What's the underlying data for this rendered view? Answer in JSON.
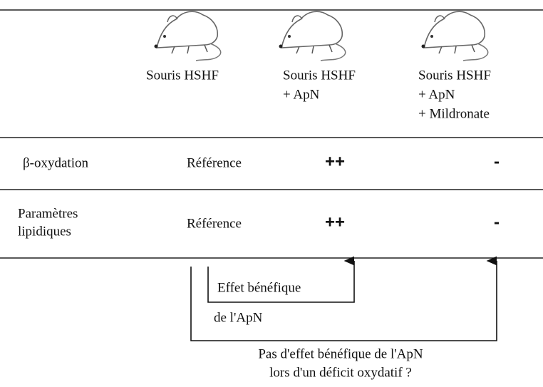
{
  "columns": [
    {
      "lines": [
        "Souris HSHF"
      ]
    },
    {
      "lines": [
        "Souris HSHF",
        "+ ApN"
      ]
    },
    {
      "lines": [
        "Souris HSHF",
        "+ ApN",
        "+ Mildronate"
      ]
    }
  ],
  "rows": [
    {
      "label": [
        "β-oxydation"
      ],
      "cells": [
        "Référence",
        "++",
        "-"
      ]
    },
    {
      "label": [
        "Paramètres",
        "lipidiques"
      ],
      "cells": [
        "Référence",
        "++",
        "-"
      ]
    }
  ],
  "annotations": {
    "inner": [
      "Effet bénéfique",
      "de l'ApN"
    ],
    "outer": [
      "Pas d'effet bénéfique de l'ApN",
      "lors d'un déficit oxydatif ?"
    ]
  }
}
